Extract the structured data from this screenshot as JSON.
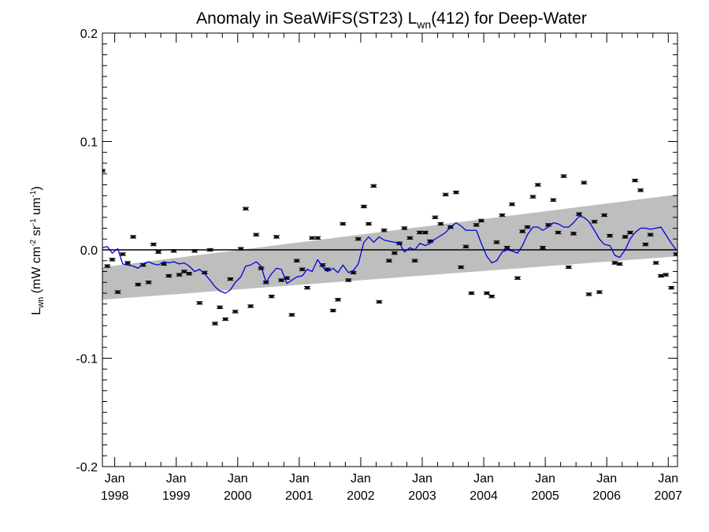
{
  "chart_data": {
    "type": "scatter",
    "title": {
      "main": "Anomaly in SeaWiFS(ST23) L",
      "sub": "wn",
      "rest": "(412) for Deep-Water"
    },
    "ylabel": {
      "L": "L",
      "wn": "wn",
      "a": " (mW cm",
      "e1": "-2",
      "b": " sr",
      "e2": "-1",
      "c": " um",
      "e3": "-1",
      "d": ")"
    },
    "xlim": [
      1997.8,
      2007.15
    ],
    "ylim": [
      -0.2,
      0.2
    ],
    "y_ticks": [
      {
        "value": -0.2,
        "label": "-0.2"
      },
      {
        "value": -0.1,
        "label": "-0.1"
      },
      {
        "value": 0.0,
        "label": "0.0"
      },
      {
        "value": 0.1,
        "label": "0.1"
      },
      {
        "value": 0.2,
        "label": "0.2"
      }
    ],
    "x_ticks": [
      {
        "value": 1998.0,
        "month": "Jan",
        "year": "1998"
      },
      {
        "value": 1999.0,
        "month": "Jan",
        "year": "1999"
      },
      {
        "value": 2000.0,
        "month": "Jan",
        "year": "2000"
      },
      {
        "value": 2001.0,
        "month": "Jan",
        "year": "2001"
      },
      {
        "value": 2002.0,
        "month": "Jan",
        "year": "2002"
      },
      {
        "value": 2003.0,
        "month": "Jan",
        "year": "2003"
      },
      {
        "value": 2004.0,
        "month": "Jan",
        "year": "2004"
      },
      {
        "value": 2005.0,
        "month": "Jan",
        "year": "2005"
      },
      {
        "value": 2006.0,
        "month": "Jan",
        "year": "2006"
      },
      {
        "value": 2007.0,
        "month": "Jan",
        "year": "2007"
      }
    ],
    "trend_band": {
      "x": [
        1997.8,
        2007.15
      ],
      "lower": [
        -0.046,
        -0.006
      ],
      "upper": [
        -0.016,
        0.051
      ]
    },
    "zero_line": 0.0,
    "colors": {
      "points": "#000000",
      "running_mean": "#0000dd",
      "band": "#bebebe",
      "zero_line": "#000000"
    },
    "points": {
      "x": [
        1997.8,
        1997.88,
        1997.96,
        1998.05,
        1998.13,
        1998.21,
        1998.3,
        1998.38,
        1998.46,
        1998.55,
        1998.63,
        1998.71,
        1998.8,
        1998.88,
        1998.96,
        1999.05,
        1999.13,
        1999.21,
        1999.3,
        1999.38,
        1999.46,
        1999.55,
        1999.63,
        1999.71,
        1999.8,
        1999.88,
        1999.96,
        2000.05,
        2000.13,
        2000.21,
        2000.3,
        2000.38,
        2000.46,
        2000.55,
        2000.63,
        2000.71,
        2000.8,
        2000.88,
        2000.96,
        2001.05,
        2001.13,
        2001.21,
        2001.3,
        2001.38,
        2001.46,
        2001.55,
        2001.63,
        2001.71,
        2001.8,
        2001.88,
        2001.96,
        2002.05,
        2002.13,
        2002.21,
        2002.3,
        2002.38,
        2002.46,
        2002.55,
        2002.63,
        2002.71,
        2002.8,
        2002.88,
        2002.96,
        2003.05,
        2003.13,
        2003.21,
        2003.3,
        2003.38,
        2003.46,
        2003.55,
        2003.63,
        2003.71,
        2003.8,
        2003.88,
        2003.96,
        2004.05,
        2004.13,
        2004.21,
        2004.3,
        2004.38,
        2004.46,
        2004.55,
        2004.63,
        2004.71,
        2004.8,
        2004.88,
        2004.96,
        2005.05,
        2005.13,
        2005.21,
        2005.3,
        2005.38,
        2005.46,
        2005.55,
        2005.63,
        2005.71,
        2005.8,
        2005.88,
        2005.96,
        2006.05,
        2006.13,
        2006.21,
        2006.3,
        2006.38,
        2006.46,
        2006.55,
        2006.63,
        2006.71,
        2006.8,
        2006.88,
        2006.96,
        2007.05,
        2007.13
      ],
      "y": [
        0.073,
        -0.015,
        -0.009,
        -0.039,
        -0.004,
        -0.012,
        0.012,
        -0.032,
        -0.014,
        -0.03,
        0.005,
        -0.002,
        -0.013,
        -0.024,
        -0.001,
        -0.023,
        -0.02,
        -0.022,
        -0.001,
        -0.049,
        -0.021,
        -0.0,
        -0.068,
        -0.053,
        -0.064,
        -0.027,
        -0.057,
        0.001,
        0.038,
        -0.052,
        0.014,
        -0.017,
        -0.03,
        -0.043,
        0.012,
        -0.028,
        -0.026,
        -0.06,
        -0.01,
        -0.018,
        -0.035,
        0.011,
        0.011,
        -0.014,
        -0.018,
        -0.056,
        -0.046,
        0.024,
        -0.028,
        -0.021,
        0.01,
        0.04,
        0.024,
        0.059,
        -0.048,
        0.018,
        -0.01,
        -0.003,
        0.006,
        0.02,
        0.011,
        -0.01,
        0.016,
        0.016,
        0.008,
        0.03,
        0.024,
        0.051,
        0.021,
        0.053,
        -0.016,
        0.003,
        -0.04,
        0.023,
        0.027,
        -0.04,
        -0.043,
        0.007,
        0.032,
        0.002,
        0.042,
        -0.026,
        0.017,
        0.021,
        0.049,
        0.06,
        0.002,
        0.023,
        0.046,
        0.016,
        0.068,
        -0.016,
        0.015,
        0.033,
        0.062,
        -0.041,
        0.026,
        -0.039,
        0.032,
        0.013,
        -0.012,
        -0.013,
        0.012,
        0.016,
        0.064,
        0.055,
        0.005,
        0.014,
        -0.012,
        -0.024,
        -0.023,
        -0.035,
        -0.004
      ],
      "error": [
        0.0012,
        0.0012,
        0.0012,
        0.0012,
        0.0012,
        0.0012,
        0.0012,
        0.0012,
        0.0012,
        0.0012,
        0.0012,
        0.0012,
        0.0012,
        0.0012,
        0.0012,
        0.0012,
        0.0012,
        0.0012,
        0.0012,
        0.0012,
        0.0012,
        0.0012,
        0.0012,
        0.0012,
        0.0012,
        0.0012,
        0.0012,
        0.0012,
        0.0012,
        0.0012,
        0.0012,
        0.0012,
        0.0012,
        0.0012,
        0.0012,
        0.0012,
        0.0012,
        0.0012,
        0.0012,
        0.0012,
        0.0012,
        0.0012,
        0.0012,
        0.0012,
        0.0012,
        0.0012,
        0.0012,
        0.0012,
        0.0012,
        0.0012,
        0.0012,
        0.0012,
        0.0012,
        0.0012,
        0.0012,
        0.0012,
        0.0012,
        0.0012,
        0.0012,
        0.0012,
        0.0012,
        0.0012,
        0.0012,
        0.0012,
        0.0012,
        0.0012,
        0.0012,
        0.0012,
        0.0012,
        0.0012,
        0.0012,
        0.0012,
        0.0012,
        0.0012,
        0.0012,
        0.0012,
        0.0012,
        0.0012,
        0.0012,
        0.0012,
        0.0012,
        0.0012,
        0.0012,
        0.0012,
        0.0012,
        0.0012,
        0.0012,
        0.0012,
        0.0012,
        0.0012,
        0.0012,
        0.0012,
        0.0012,
        0.0012,
        0.0012,
        0.0012,
        0.0012,
        0.0012,
        0.0012,
        0.0012,
        0.0012,
        0.0012,
        0.0012,
        0.0012,
        0.0012,
        0.0012,
        0.0012,
        0.0012,
        0.0012,
        0.0012,
        0.0012,
        0.0012,
        0.0012
      ]
    },
    "running_mean": {
      "x": [
        1997.8,
        1997.88,
        1997.96,
        1998.05,
        1998.13,
        1998.21,
        1998.3,
        1998.38,
        1998.46,
        1998.55,
        1998.63,
        1998.71,
        1998.8,
        1998.88,
        1998.96,
        1999.05,
        1999.13,
        1999.21,
        1999.3,
        1999.38,
        1999.46,
        1999.55,
        1999.63,
        1999.71,
        1999.8,
        1999.88,
        1999.96,
        2000.05,
        2000.13,
        2000.21,
        2000.3,
        2000.38,
        2000.46,
        2000.55,
        2000.63,
        2000.71,
        2000.8,
        2000.88,
        2000.96,
        2001.05,
        2001.13,
        2001.21,
        2001.3,
        2001.38,
        2001.46,
        2001.55,
        2001.63,
        2001.71,
        2001.8,
        2001.88,
        2001.96,
        2002.05,
        2002.13,
        2002.21,
        2002.3,
        2002.38,
        2002.46,
        2002.55,
        2002.63,
        2002.71,
        2002.8,
        2002.88,
        2002.96,
        2003.05,
        2003.13,
        2003.21,
        2003.3,
        2003.38,
        2003.46,
        2003.55,
        2003.63,
        2003.71,
        2003.8,
        2003.88,
        2003.96,
        2004.05,
        2004.13,
        2004.21,
        2004.3,
        2004.38,
        2004.46,
        2004.55,
        2004.63,
        2004.71,
        2004.8,
        2004.88,
        2004.96,
        2005.05,
        2005.13,
        2005.21,
        2005.3,
        2005.38,
        2005.46,
        2005.55,
        2005.63,
        2005.71,
        2005.8,
        2005.88,
        2005.96,
        2006.05,
        2006.13,
        2006.21,
        2006.3,
        2006.38,
        2006.46,
        2006.55,
        2006.63,
        2006.71,
        2006.8,
        2006.88,
        2006.96,
        2007.05,
        2007.13
      ],
      "y": [
        0.002,
        0.003,
        -0.003,
        0.001,
        -0.013,
        -0.014,
        -0.015,
        -0.017,
        -0.013,
        -0.011,
        -0.013,
        -0.014,
        -0.011,
        -0.012,
        -0.011,
        -0.013,
        -0.012,
        -0.015,
        -0.02,
        -0.018,
        -0.022,
        -0.028,
        -0.034,
        -0.038,
        -0.04,
        -0.037,
        -0.03,
        -0.025,
        -0.015,
        -0.014,
        -0.011,
        -0.015,
        -0.03,
        -0.022,
        -0.017,
        -0.018,
        -0.031,
        -0.028,
        -0.025,
        -0.024,
        -0.018,
        -0.02,
        -0.009,
        -0.016,
        -0.02,
        -0.017,
        -0.021,
        -0.014,
        -0.021,
        -0.019,
        -0.013,
        0.007,
        0.012,
        0.007,
        0.012,
        0.009,
        0.008,
        0.007,
        0.006,
        -0.002,
        0.002,
        0.0,
        0.006,
        0.004,
        0.006,
        0.01,
        0.013,
        0.016,
        0.021,
        0.025,
        0.022,
        0.018,
        0.018,
        0.018,
        0.006,
        -0.006,
        -0.012,
        -0.01,
        -0.002,
        0.0,
        -0.001,
        -0.003,
        0.004,
        0.014,
        0.021,
        0.021,
        0.018,
        0.021,
        0.025,
        0.024,
        0.021,
        0.021,
        0.025,
        0.031,
        0.03,
        0.026,
        0.018,
        0.01,
        0.005,
        0.004,
        -0.005,
        -0.007,
        0.0,
        0.01,
        0.016,
        0.02,
        0.02,
        0.019,
        0.02,
        0.021,
        0.014,
        0.006,
        0.0
      ]
    }
  }
}
